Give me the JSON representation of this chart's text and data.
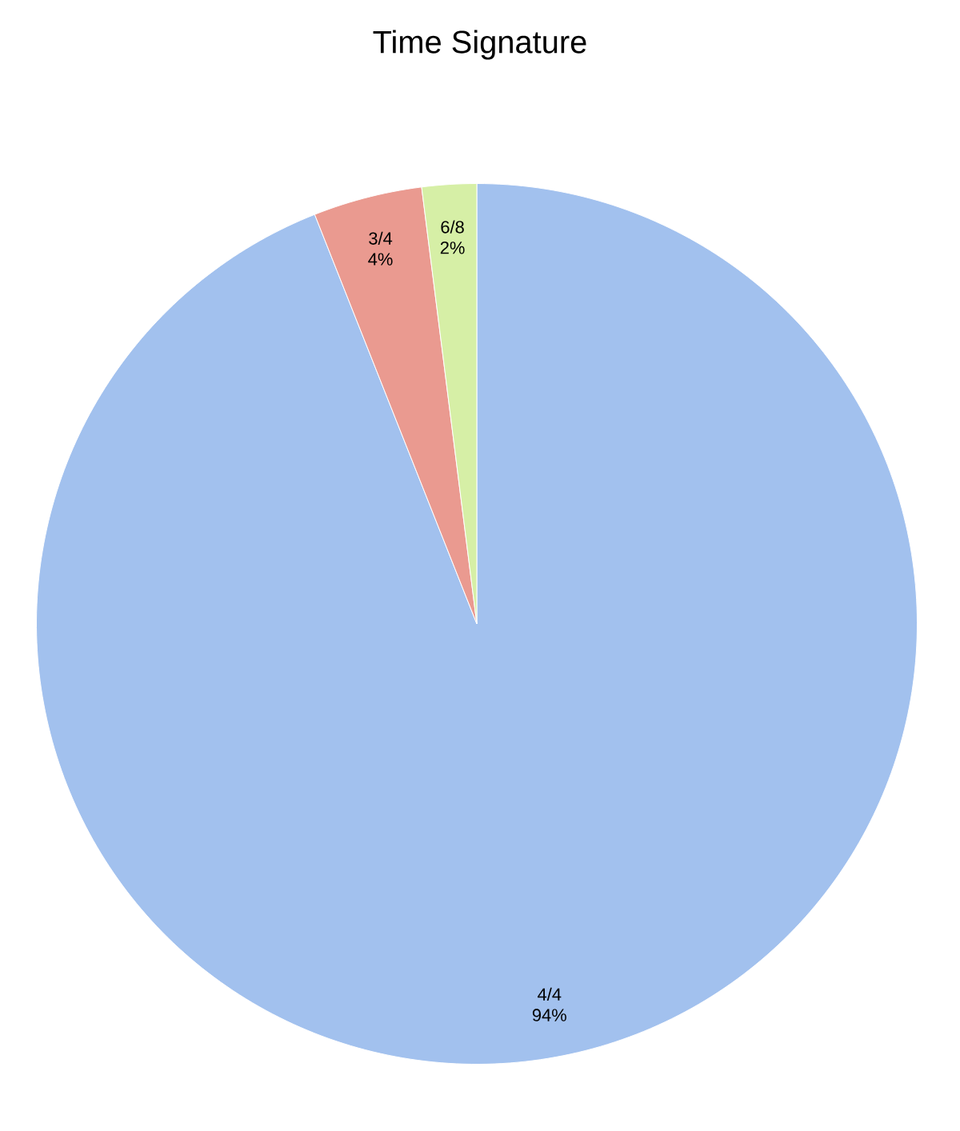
{
  "chart_data": {
    "type": "pie",
    "title": "Time Signature",
    "categories": [
      "4/4",
      "3/4",
      "6/8"
    ],
    "values": [
      94,
      4,
      2
    ],
    "value_labels": [
      "94%",
      "4%",
      "2%"
    ],
    "colors": [
      "#a2c1ee",
      "#ea9a90",
      "#d6efa6"
    ]
  }
}
